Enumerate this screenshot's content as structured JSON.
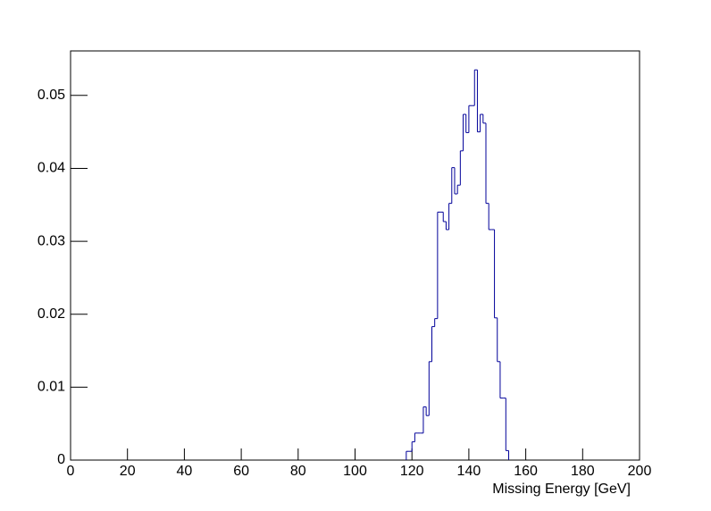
{
  "chart_data": {
    "type": "histogram",
    "xlabel": "Missing Energy [GeV]",
    "bins": [
      118,
      119,
      120,
      121,
      122,
      123,
      124,
      125,
      126,
      127,
      128,
      129,
      130,
      131,
      132,
      133,
      134,
      135,
      136,
      137,
      138,
      139,
      140,
      141,
      142,
      143,
      144,
      145,
      146,
      147,
      148,
      149,
      150,
      151,
      152,
      153,
      154
    ],
    "values": [
      0.0012,
      0.0012,
      0.0025,
      0.0037,
      0.0037,
      0.0037,
      0.0073,
      0.0061,
      0.0135,
      0.0183,
      0.0194,
      0.034,
      0.034,
      0.0327,
      0.0316,
      0.0352,
      0.0401,
      0.0365,
      0.0377,
      0.0424,
      0.0474,
      0.0449,
      0.0486,
      0.0486,
      0.0535,
      0.045,
      0.0474,
      0.0462,
      0.0352,
      0.0316,
      0.0316,
      0.0195,
      0.0135,
      0.0085,
      0.0085,
      0.0013
    ],
    "color": "#000099",
    "xlim": [
      0,
      200
    ],
    "xticks": [
      0,
      20,
      40,
      60,
      80,
      100,
      120,
      140,
      160,
      180,
      200
    ],
    "ylim": [
      0,
      0.0561
    ],
    "yticks": [
      0,
      0.01,
      0.02,
      0.03,
      0.04,
      0.05
    ]
  }
}
